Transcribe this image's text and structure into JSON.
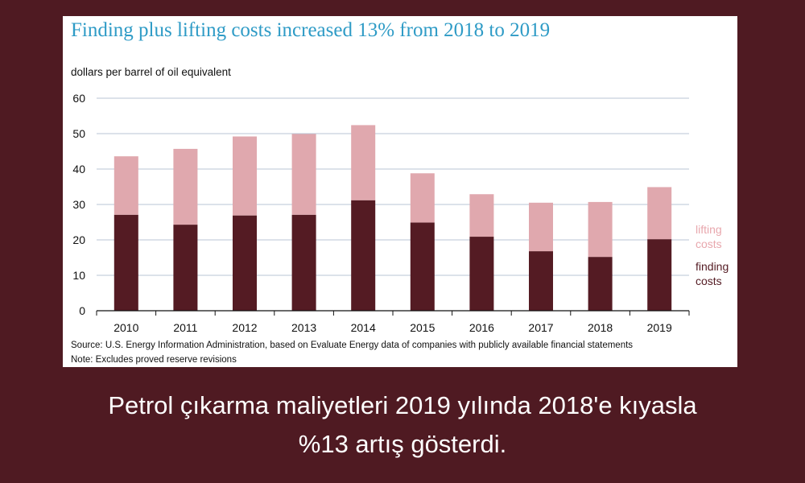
{
  "colors": {
    "background": "#4f1a22",
    "title": "#2e9bc6",
    "finding": "#541b23",
    "lifting": "#e0a8ae",
    "legend_lifting_text": "#e8a7ad",
    "legend_finding_text": "#541b23"
  },
  "chart_data": {
    "type": "bar",
    "stacked": true,
    "title": "Finding plus lifting costs increased 13% from 2018 to 2019",
    "ylabel": "dollars per barrel of oil equivalent",
    "ylim": [
      0,
      60
    ],
    "yticks": [
      "0",
      "10",
      "20",
      "30",
      "40",
      "50",
      "60"
    ],
    "grid": true,
    "legend_position": "right",
    "categories": [
      "2010",
      "2011",
      "2012",
      "2013",
      "2014",
      "2015",
      "2016",
      "2017",
      "2018",
      "2019"
    ],
    "series": [
      {
        "name": "finding costs",
        "values": [
          27.1,
          24.3,
          26.9,
          27.1,
          31.2,
          24.9,
          20.9,
          16.8,
          15.2,
          20.2
        ]
      },
      {
        "name": "lifting costs",
        "values": [
          16.5,
          21.4,
          22.3,
          22.8,
          21.2,
          13.9,
          12.0,
          13.7,
          15.5,
          14.7
        ]
      }
    ],
    "legend": {
      "lifting": [
        "lifting",
        "costs"
      ],
      "finding": [
        "finding",
        "costs"
      ]
    },
    "source": "Source: U.S. Energy Information Administration, based on Evaluate Energy data of companies with publicly available financial statements",
    "note": "Note: Excludes proved reserve revisions"
  },
  "caption": {
    "line1": "Petrol çıkarma maliyetleri 2019 yılında 2018'e kıyasla",
    "line2": "%13 artış gösterdi."
  }
}
